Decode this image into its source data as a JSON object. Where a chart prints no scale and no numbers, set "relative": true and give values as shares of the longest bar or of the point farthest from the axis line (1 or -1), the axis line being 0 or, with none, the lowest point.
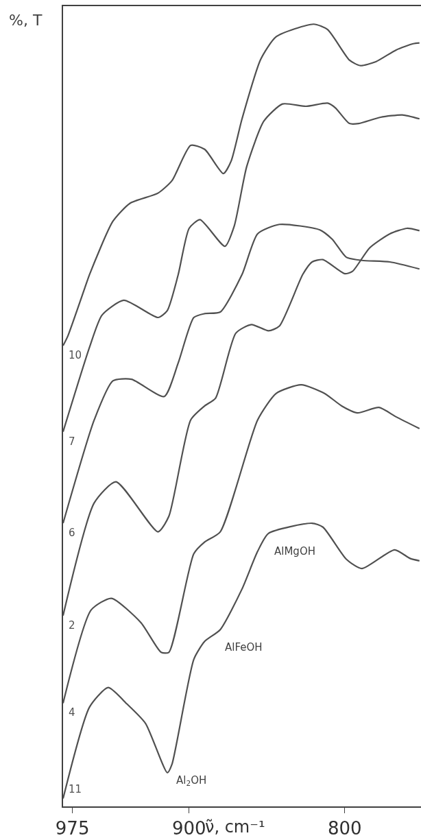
{
  "chart_data": {
    "type": "line",
    "relative": true,
    "xlabel": "ν̃, cm⁻¹",
    "ylabel": "%, T",
    "xlim": [
      981,
      751
    ],
    "xticks": [
      975,
      900,
      800
    ],
    "legend": false,
    "marker": "none",
    "line_style": "solid",
    "annotations": [
      "AlMgOH",
      "AlFeOH",
      "Al$_{2}$OH"
    ],
    "series": [
      {
        "name": "10",
        "color": "#505050",
        "x": [
          981,
          978,
          967,
          964,
          949,
          938,
          920,
          911,
          899,
          890,
          878,
          873,
          866,
          854,
          844,
          820,
          811,
          797,
          790,
          780,
          767,
          756,
          752
        ],
        "values": [
          0.589,
          0.601,
          0.663,
          0.68,
          0.748,
          0.771,
          0.784,
          0.8,
          0.845,
          0.84,
          0.809,
          0.825,
          0.879,
          0.955,
          0.984,
          1.0,
          0.993,
          0.954,
          0.947,
          0.952,
          0.967,
          0.975,
          0.976
        ]
      },
      {
        "name": "7",
        "color": "#505050",
        "x": [
          981,
          964,
          956,
          942,
          920,
          914,
          907,
          900,
          893,
          877,
          871,
          863,
          852,
          840,
          825,
          811,
          806,
          797,
          791,
          777,
          763,
          752
        ],
        "values": [
          0.479,
          0.587,
          0.628,
          0.647,
          0.625,
          0.634,
          0.68,
          0.739,
          0.75,
          0.716,
          0.742,
          0.818,
          0.876,
          0.898,
          0.895,
          0.899,
          0.893,
          0.873,
          0.873,
          0.881,
          0.884,
          0.879
        ]
      },
      {
        "name": "6",
        "color": "#505050",
        "x": [
          981,
          961,
          949,
          937,
          916,
          907,
          897,
          890,
          880,
          866,
          856,
          842,
          816,
          808,
          799,
          789,
          771,
          752
        ],
        "values": [
          0.362,
          0.494,
          0.544,
          0.546,
          0.524,
          0.567,
          0.625,
          0.63,
          0.632,
          0.68,
          0.732,
          0.744,
          0.737,
          0.725,
          0.702,
          0.698,
          0.696,
          0.687
        ]
      },
      {
        "name": "2",
        "color": "#505050",
        "x": [
          981,
          961,
          947,
          920,
          913,
          899,
          890,
          883,
          870,
          860,
          849,
          842,
          827,
          821,
          814,
          800,
          795,
          784,
          771,
          760,
          752
        ],
        "values": [
          0.244,
          0.388,
          0.415,
          0.351,
          0.371,
          0.494,
          0.512,
          0.522,
          0.605,
          0.616,
          0.608,
          0.614,
          0.68,
          0.696,
          0.699,
          0.681,
          0.684,
          0.714,
          0.732,
          0.739,
          0.736
        ]
      },
      {
        "name": "4",
        "color": "#505050",
        "x": [
          981,
          963,
          950,
          931,
          918,
          913,
          897,
          890,
          880,
          856,
          844,
          828,
          813,
          802,
          792,
          778,
          767,
          752
        ],
        "values": [
          0.132,
          0.251,
          0.266,
          0.235,
          0.197,
          0.197,
          0.323,
          0.338,
          0.351,
          0.494,
          0.528,
          0.539,
          0.528,
          0.512,
          0.503,
          0.51,
          0.498,
          0.483
        ]
      },
      {
        "name": "11",
        "color": "#505050",
        "x": [
          981,
          964,
          952,
          940,
          928,
          914,
          911,
          897,
          890,
          880,
          866,
          856,
          849,
          821,
          814,
          799,
          789,
          768,
          758,
          752
        ],
        "values": [
          0.01,
          0.127,
          0.152,
          0.131,
          0.106,
          0.043,
          0.054,
          0.188,
          0.211,
          0.226,
          0.278,
          0.326,
          0.349,
          0.362,
          0.357,
          0.316,
          0.304,
          0.328,
          0.317,
          0.314
        ]
      }
    ]
  }
}
